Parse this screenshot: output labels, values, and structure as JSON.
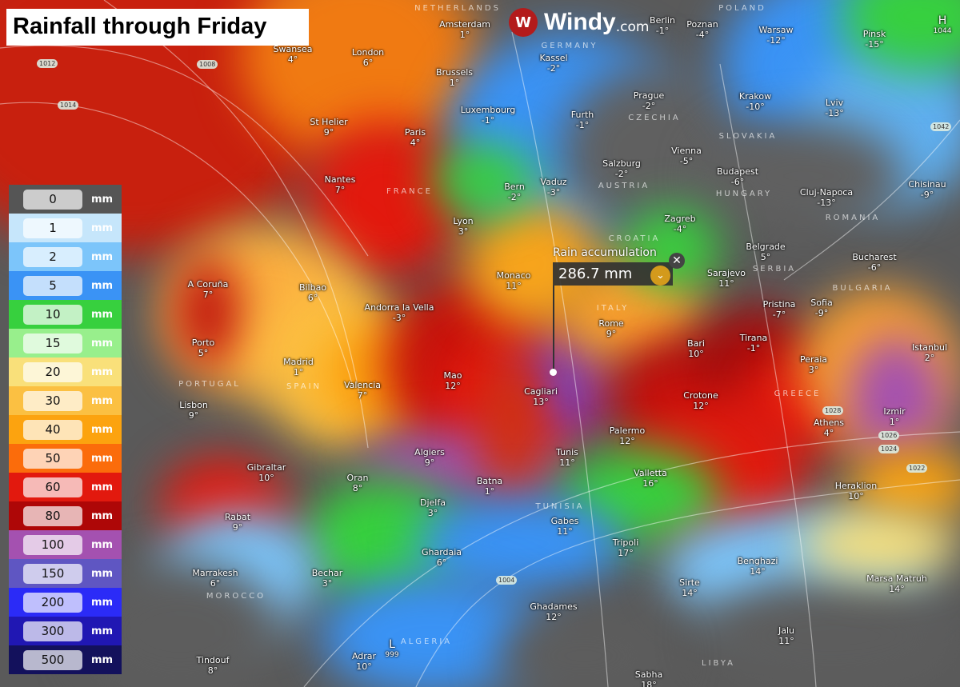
{
  "title": "Rainfall through Friday",
  "brand": {
    "name": "Windy",
    "suffix": ".com",
    "logo_color": "#b31b1b"
  },
  "legend": {
    "unit": "mm",
    "items": [
      {
        "value": "0",
        "color": "#555555"
      },
      {
        "value": "1",
        "color": "#c6e6fb"
      },
      {
        "value": "2",
        "color": "#7cc5fa"
      },
      {
        "value": "5",
        "color": "#3a93f5"
      },
      {
        "value": "10",
        "color": "#37d03e"
      },
      {
        "value": "15",
        "color": "#98ef8c"
      },
      {
        "value": "20",
        "color": "#f9e07a"
      },
      {
        "value": "30",
        "color": "#fbc042"
      },
      {
        "value": "40",
        "color": "#fca30f"
      },
      {
        "value": "50",
        "color": "#fb6c0b"
      },
      {
        "value": "60",
        "color": "#e2190e"
      },
      {
        "value": "80",
        "color": "#ae0707"
      },
      {
        "value": "100",
        "color": "#a451b0"
      },
      {
        "value": "150",
        "color": "#5f56c2"
      },
      {
        "value": "200",
        "color": "#2b2bf7"
      },
      {
        "value": "300",
        "color": "#2017b3"
      },
      {
        "value": "500",
        "color": "#13115c"
      }
    ]
  },
  "popup": {
    "label": "Rain accumulation",
    "value": "286.7 mm",
    "close_icon": "close-icon",
    "expand_icon": "chevron-down-icon"
  },
  "cities": [
    {
      "name": "Amsterdam",
      "temp": "1°"
    },
    {
      "name": "Swansea",
      "temp": "4°"
    },
    {
      "name": "London",
      "temp": "6°"
    },
    {
      "name": "Brussels",
      "temp": "1°"
    },
    {
      "name": "Kassel",
      "temp": "-2°"
    },
    {
      "name": "Berlin",
      "temp": "-1°"
    },
    {
      "name": "Poznan",
      "temp": "-4°"
    },
    {
      "name": "Warsaw",
      "temp": "-12°"
    },
    {
      "name": "Pinsk",
      "temp": "-15°"
    },
    {
      "name": "Luxembourg",
      "temp": "-1°"
    },
    {
      "name": "Paris",
      "temp": "4°"
    },
    {
      "name": "St Helier",
      "temp": "9°"
    },
    {
      "name": "Furth",
      "temp": "-1°"
    },
    {
      "name": "Prague",
      "temp": "-2°"
    },
    {
      "name": "Krakow",
      "temp": "-10°"
    },
    {
      "name": "Lviv",
      "temp": "-13°"
    },
    {
      "name": "Salzburg",
      "temp": "-2°"
    },
    {
      "name": "Vienna",
      "temp": "-5°"
    },
    {
      "name": "Budapest",
      "temp": "-6°"
    },
    {
      "name": "Cluj-Napoca",
      "temp": "-13°"
    },
    {
      "name": "Chisinau",
      "temp": "-9°"
    },
    {
      "name": "Nantes",
      "temp": "7°"
    },
    {
      "name": "Bern",
      "temp": "-2°"
    },
    {
      "name": "Vaduz",
      "temp": "-3°"
    },
    {
      "name": "Lyon",
      "temp": "3°"
    },
    {
      "name": "Zagreb",
      "temp": "-4°"
    },
    {
      "name": "Belgrade",
      "temp": "5°"
    },
    {
      "name": "Bucharest",
      "temp": "-6°"
    },
    {
      "name": "Sarajevo",
      "temp": "11°"
    },
    {
      "name": "A Coruña",
      "temp": "7°"
    },
    {
      "name": "Bilbao",
      "temp": "6°"
    },
    {
      "name": "Monaco",
      "temp": "11°"
    },
    {
      "name": "Andorra la Vella",
      "temp": "-3°"
    },
    {
      "name": "Rome",
      "temp": "9°"
    },
    {
      "name": "Pristina",
      "temp": "-7°"
    },
    {
      "name": "Sofia",
      "temp": "-9°"
    },
    {
      "name": "Porto",
      "temp": "5°"
    },
    {
      "name": "Madrid",
      "temp": "1°"
    },
    {
      "name": "Bari",
      "temp": "10°"
    },
    {
      "name": "Tirana",
      "temp": "-1°"
    },
    {
      "name": "Istanbul",
      "temp": "2°"
    },
    {
      "name": "Peraia",
      "temp": "3°"
    },
    {
      "name": "Mao",
      "temp": "12°"
    },
    {
      "name": "Valencia",
      "temp": "7°"
    },
    {
      "name": "Cagliari",
      "temp": "13°"
    },
    {
      "name": "Crotone",
      "temp": "12°"
    },
    {
      "name": "Lisbon",
      "temp": "9°"
    },
    {
      "name": "Athens",
      "temp": "4°"
    },
    {
      "name": "Izmir",
      "temp": "1°"
    },
    {
      "name": "Palermo",
      "temp": "12°"
    },
    {
      "name": "Algiers",
      "temp": "9°"
    },
    {
      "name": "Tunis",
      "temp": "11°"
    },
    {
      "name": "Gibraltar",
      "temp": "10°"
    },
    {
      "name": "Valletta",
      "temp": "16°"
    },
    {
      "name": "Oran",
      "temp": "8°"
    },
    {
      "name": "Batna",
      "temp": "1°"
    },
    {
      "name": "Heraklion",
      "temp": "10°"
    },
    {
      "name": "Djelfa",
      "temp": "3°"
    },
    {
      "name": "Rabat",
      "temp": "9°"
    },
    {
      "name": "Gabes",
      "temp": "11°"
    },
    {
      "name": "Tripoli",
      "temp": "17°"
    },
    {
      "name": "Ghardaia",
      "temp": "6°"
    },
    {
      "name": "Benghazi",
      "temp": "14°"
    },
    {
      "name": "Marsa Matruh",
      "temp": "14°"
    },
    {
      "name": "Marrakesh",
      "temp": "6°"
    },
    {
      "name": "Bechar",
      "temp": "3°"
    },
    {
      "name": "Sirte",
      "temp": "14°"
    },
    {
      "name": "Ghadames",
      "temp": "12°"
    },
    {
      "name": "Jalu",
      "temp": "11°"
    },
    {
      "name": "Tindouf",
      "temp": "8°"
    },
    {
      "name": "Adrar",
      "temp": "10°"
    },
    {
      "name": "Sabha",
      "temp": "18°"
    }
  ],
  "countries": [
    "NETHERLANDS",
    "GERMANY",
    "POLAND",
    "FRANCE",
    "CZECHIA",
    "AUSTRIA",
    "SLOVAKIA",
    "HUNGARY",
    "ROMANIA",
    "CROATIA",
    "SERBIA",
    "ITALY",
    "BULGARIA",
    "PORTUGAL",
    "SPAIN",
    "GREECE",
    "TUNISIA",
    "MOROCCO",
    "ALGERIA",
    "LIBYA"
  ],
  "isobars": [
    "1012",
    "1014",
    "1008",
    "1042",
    "1028",
    "1026",
    "1024",
    "1022",
    "1004"
  ],
  "pressure_centers": [
    {
      "type": "H",
      "value": "1044"
    },
    {
      "type": "L",
      "value": "999"
    }
  ]
}
